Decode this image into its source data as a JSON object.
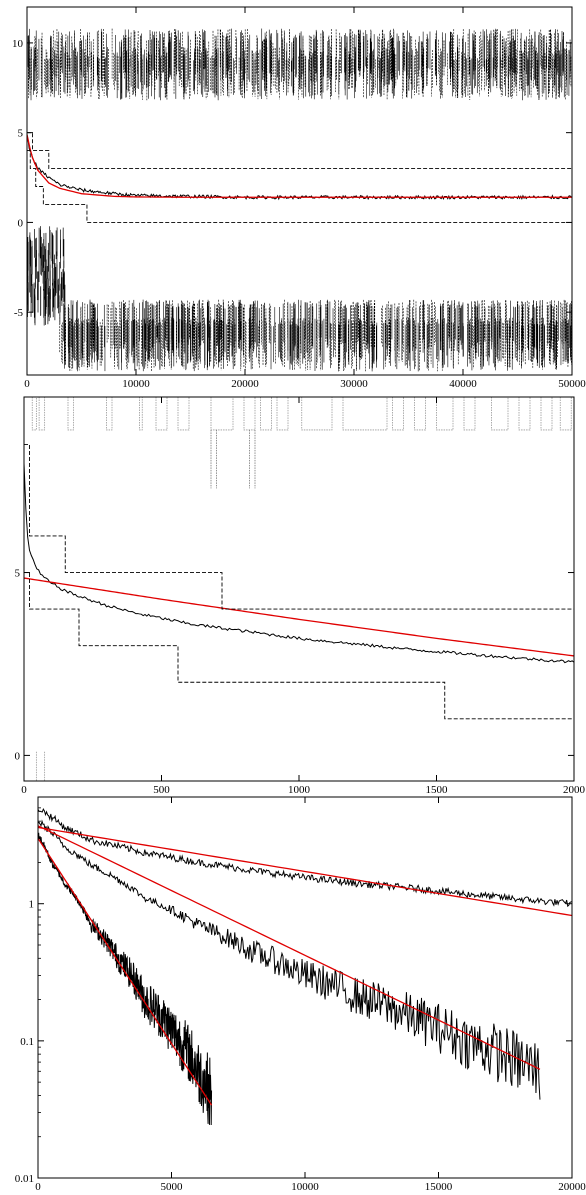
{
  "chart_data": [
    {
      "type": "line",
      "title": "",
      "xlabel": "",
      "ylabel": "",
      "xlim": [
        0,
        50000
      ],
      "ylim": [
        -8.5,
        12
      ],
      "x_ticks": [
        "0",
        "10000",
        "20000",
        "30000",
        "40000",
        "50000"
      ],
      "y_ticks": [
        "-5",
        "0",
        "5",
        "10"
      ],
      "grid": false,
      "series": [
        {
          "style": "solid-noisy",
          "color": "#000000",
          "x": [
            0,
            200,
            500,
            1000,
            2000,
            3000,
            5000,
            8000,
            10000,
            15000,
            20000,
            30000,
            40000,
            50000
          ],
          "values": [
            4.8,
            4.2,
            3.6,
            3.0,
            2.5,
            2.1,
            1.8,
            1.6,
            1.5,
            1.45,
            1.4,
            1.4,
            1.4,
            1.4
          ]
        },
        {
          "style": "fit",
          "color": "#e00000",
          "x": [
            0,
            200,
            500,
            1000,
            2000,
            3000,
            5000,
            8000,
            10000,
            15000,
            20000,
            30000,
            40000,
            50000
          ],
          "values": [
            4.9,
            4.3,
            3.6,
            2.9,
            2.2,
            1.9,
            1.6,
            1.45,
            1.42,
            1.4,
            1.4,
            1.4,
            1.4,
            1.4
          ]
        },
        {
          "style": "dashed-steps",
          "color": "#000000",
          "x": [
            0,
            500,
            500,
            2000,
            2000,
            3500,
            3500,
            50000
          ],
          "values": [
            5,
            5,
            4,
            4,
            3,
            3,
            3,
            3
          ]
        },
        {
          "style": "dashed-steps",
          "color": "#000000",
          "x": [
            0,
            300,
            300,
            800,
            800,
            1500,
            1500,
            5500,
            5500,
            7500,
            7500,
            50000
          ],
          "values": [
            4,
            4,
            3,
            3,
            2,
            2,
            1,
            1,
            0,
            0,
            0,
            0
          ]
        }
      ]
    },
    {
      "type": "line",
      "title": "",
      "xlabel": "",
      "ylabel": "",
      "xlim": [
        0,
        2000
      ],
      "ylim": [
        -0.7,
        9.8
      ],
      "x_ticks": [
        "0",
        "500",
        "1000",
        "1500",
        "2000"
      ],
      "y_ticks": [
        "0",
        "5"
      ],
      "grid": false,
      "series": [
        {
          "style": "solid",
          "color": "#000000",
          "x": [
            0,
            5,
            10,
            20,
            40,
            60,
            100,
            150,
            200,
            300,
            400,
            500,
            600,
            800,
            1000,
            1200,
            1400,
            1600,
            1800,
            2000
          ],
          "values": [
            8.0,
            7.0,
            6.2,
            5.6,
            5.2,
            4.95,
            4.7,
            4.5,
            4.35,
            4.1,
            3.9,
            3.75,
            3.6,
            3.4,
            3.2,
            3.05,
            2.9,
            2.78,
            2.66,
            2.55
          ]
        },
        {
          "style": "fit",
          "color": "#e00000",
          "x": [
            0,
            500,
            1000,
            1500,
            2000
          ],
          "values": [
            4.85,
            4.27,
            3.72,
            3.2,
            2.72
          ]
        },
        {
          "style": "dashed-steps",
          "color": "#000000",
          "x": [
            0,
            20,
            20,
            150,
            150,
            720,
            720,
            2000
          ],
          "values": [
            8.5,
            8.5,
            6.0,
            6.0,
            5.0,
            5.0,
            4.0,
            4.0
          ]
        },
        {
          "style": "dashed-steps",
          "color": "#000000",
          "x": [
            0,
            20,
            20,
            200,
            200,
            560,
            560,
            1530,
            1530,
            2000
          ],
          "values": [
            5.0,
            5.0,
            4.0,
            4.0,
            3.0,
            3.0,
            2.0,
            2.0,
            1.0,
            1.0
          ]
        }
      ]
    },
    {
      "type": "line",
      "title": "",
      "xlabel": "",
      "ylabel": "",
      "xlim": [
        0,
        20000
      ],
      "ylim": [
        0.01,
        6
      ],
      "y_scale": "log",
      "x_ticks": [
        "0",
        "5000",
        "10000",
        "15000",
        "20000"
      ],
      "y_ticks": [
        "0.01",
        "0.1",
        "1"
      ],
      "grid": false,
      "series": [
        {
          "style": "solid-noisy",
          "color": "#000000",
          "x": [
            0,
            1000,
            2000,
            4000,
            6000,
            8000,
            10000,
            12000,
            14000,
            16000,
            18000,
            20000
          ],
          "values": [
            5.0,
            3.6,
            2.9,
            2.35,
            2.0,
            1.75,
            1.55,
            1.4,
            1.3,
            1.18,
            1.08,
            1.0
          ]
        },
        {
          "style": "solid-noisy",
          "color": "#000000",
          "x": [
            0,
            1000,
            2000,
            4000,
            6000,
            8000,
            10000,
            12000,
            14000,
            16000,
            18000,
            18800
          ],
          "values": [
            4.0,
            2.6,
            1.9,
            1.1,
            0.7,
            0.45,
            0.3,
            0.21,
            0.15,
            0.1,
            0.07,
            0.06
          ]
        },
        {
          "style": "solid-noisy",
          "color": "#000000",
          "x": [
            0,
            500,
            1000,
            2000,
            3000,
            4000,
            5000,
            6000,
            6500
          ],
          "values": [
            3.2,
            2.0,
            1.4,
            0.7,
            0.4,
            0.2,
            0.12,
            0.06,
            0.04
          ]
        },
        {
          "style": "fit",
          "color": "#e00000",
          "x": [
            0,
            20000
          ],
          "values": [
            3.6,
            0.82
          ]
        },
        {
          "style": "fit",
          "color": "#e00000",
          "x": [
            0,
            18800
          ],
          "values": [
            3.7,
            0.062
          ]
        },
        {
          "style": "fit",
          "color": "#e00000",
          "x": [
            0,
            6500
          ],
          "values": [
            3.0,
            0.034
          ]
        }
      ]
    }
  ]
}
